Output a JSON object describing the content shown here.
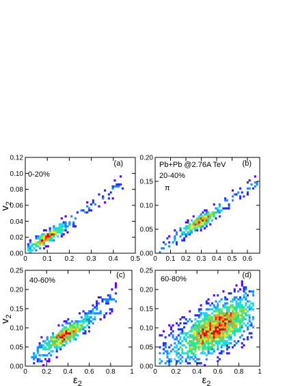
{
  "colors": {
    "palette": [
      "#5a00ff",
      "#2030ff",
      "#1a8cff",
      "#1ad0ff",
      "#22e6c8",
      "#30e080",
      "#8ee040",
      "#e6e63a",
      "#ff9a1a",
      "#ff2a0a",
      "#d60000"
    ],
    "frame": "#000000",
    "background": "#ffffff"
  },
  "chart_data": [
    {
      "panel": "a",
      "type": "heatmap",
      "xlabel": "",
      "ylabel": "v2",
      "xlim": [
        0,
        0.5
      ],
      "ylim": [
        0,
        0.12
      ],
      "xticks": [
        0,
        0.1,
        0.2,
        0.3,
        0.4,
        0.5
      ],
      "xtick_labels": [
        "0",
        "0.1",
        "0.2",
        "0.3",
        "0.4",
        "0.5"
      ],
      "yticks": [
        0,
        0.02,
        0.04,
        0.06,
        0.08,
        0.1,
        0.12
      ],
      "ytick_labels": [
        "0.00",
        "0.02",
        "0.04",
        "0.06",
        "0.08",
        "0.10",
        "0.12"
      ],
      "annotations": [
        "0-20%",
        "(a)"
      ],
      "slope": 0.2,
      "x_range": [
        0.01,
        0.45
      ],
      "y_spread": 0.006,
      "peak_x": 0.1,
      "peak_y": 0.02
    },
    {
      "panel": "b",
      "type": "heatmap",
      "xlabel": "",
      "ylabel": "",
      "xlim": [
        0,
        0.68
      ],
      "ylim": [
        0,
        0.2
      ],
      "xticks": [
        0,
        0.1,
        0.2,
        0.3,
        0.4,
        0.5,
        0.6
      ],
      "xtick_labels": [
        "0",
        "0.1",
        "0.2",
        "0.3",
        "0.4",
        "0.5",
        "0.6"
      ],
      "yticks": [
        0,
        0.05,
        0.1,
        0.15,
        0.2
      ],
      "ytick_labels": [
        "0.00",
        "0.05",
        "0.10",
        "0.15",
        "0.20"
      ],
      "annotations": [
        "Pb+Pb @2.76A TeV",
        "20-40%",
        "π",
        "(b)"
      ],
      "slope": 0.225,
      "x_range": [
        0.03,
        0.67
      ],
      "y_spread": 0.01,
      "peak_x": 0.3,
      "peak_y": 0.067
    },
    {
      "panel": "c",
      "type": "heatmap",
      "xlabel": "ε2",
      "ylabel": "v2",
      "xlim": [
        0,
        1
      ],
      "ylim": [
        0,
        0.25
      ],
      "xticks": [
        0,
        0.2,
        0.4,
        0.6,
        0.8,
        1
      ],
      "xtick_labels": [
        "0",
        "0.2",
        "0.4",
        "0.6",
        "0.8",
        "1"
      ],
      "yticks": [
        0,
        0.05,
        0.1,
        0.15,
        0.2,
        0.25
      ],
      "ytick_labels": [
        "0.00",
        "0.05",
        "0.10",
        "0.15",
        "0.20",
        "0.25"
      ],
      "annotations": [
        "40-60%",
        "(c)"
      ],
      "slope": 0.215,
      "x_range": [
        0.06,
        0.85
      ],
      "y_spread": 0.02,
      "peak_x": 0.37,
      "peak_y": 0.08
    },
    {
      "panel": "d",
      "type": "heatmap",
      "xlabel": "ε2",
      "ylabel": "",
      "xlim": [
        0,
        1
      ],
      "ylim": [
        0,
        0.25
      ],
      "xticks": [
        0,
        0.2,
        0.4,
        0.6,
        0.8,
        1
      ],
      "xtick_labels": [
        "0",
        "0.2",
        "0.4",
        "0.6",
        "0.8",
        "1"
      ],
      "yticks": [
        0,
        0.05,
        0.1,
        0.15,
        0.2,
        0.25
      ],
      "ytick_labels": [
        "0.00",
        "0.05",
        "0.10",
        "0.15",
        "0.20",
        "0.25"
      ],
      "annotations": [
        "60-80%",
        "(d)"
      ],
      "slope": 0.17,
      "x_range": [
        0.03,
        0.95
      ],
      "y_spread": 0.045,
      "peak_x": 0.58,
      "peak_y": 0.1
    }
  ]
}
